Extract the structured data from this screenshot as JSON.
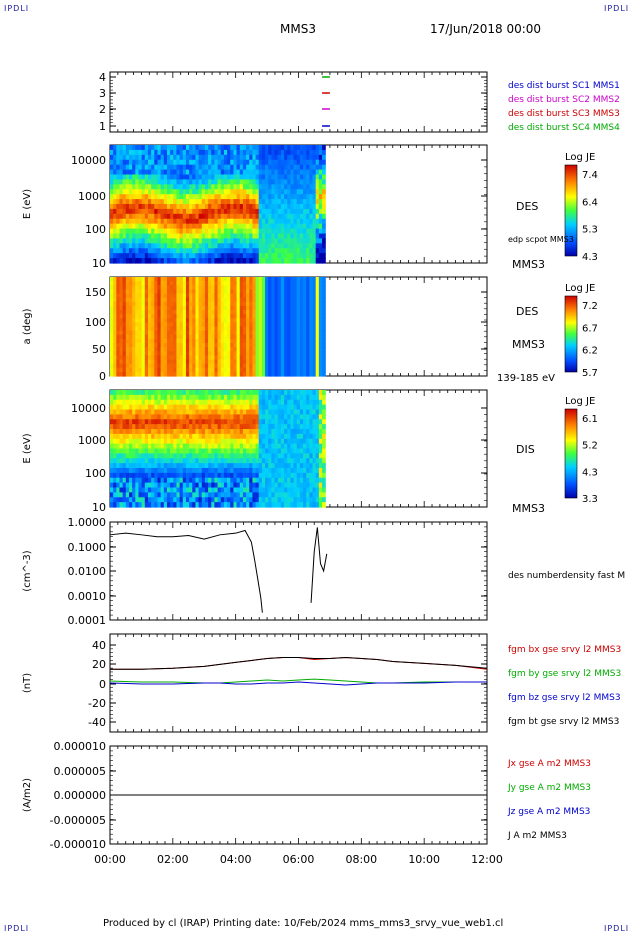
{
  "corner_label": "IPDLI",
  "header": {
    "spacecraft": "MMS3",
    "date": "17/Jun/2018 00:00"
  },
  "footer": {
    "text": "Produced by cl (IRAP)   Printing date: 10/Feb/2024   mms_mms3_srvy_vue_web1.cl"
  },
  "time_axis": {
    "ticks": [
      "00:00",
      "02:00",
      "04:00",
      "06:00",
      "08:00",
      "10:00",
      "12:00"
    ],
    "range_hours": [
      0,
      12
    ]
  },
  "chart_data": [
    {
      "type": "line",
      "panel": "availability",
      "yticks": [
        "4",
        "3",
        "2",
        "1"
      ],
      "legend": [
        {
          "text": "des dist burst SC1 MMS1",
          "color": "#0000cc"
        },
        {
          "text": "des dist burst SC2 MMS2",
          "color": "#cc00cc"
        },
        {
          "text": "des dist burst SC3 MMS3",
          "color": "#cc0000"
        },
        {
          "text": "des dist burst SC4 MMS4",
          "color": "#00aa00"
        }
      ]
    },
    {
      "type": "heatmap",
      "panel": "des-energy",
      "ylabel": "E (eV)",
      "yticks": [
        "10000",
        "1000",
        "100",
        "10"
      ],
      "side_label": "DES",
      "side_note": "edp scpot MMS3",
      "sc_label": "MMS3",
      "colorbar": {
        "title": "Log JE",
        "ticks": [
          "7.4",
          "6.4",
          "5.3",
          "4.3"
        ]
      }
    },
    {
      "type": "heatmap",
      "panel": "des-pitch",
      "ylabel": "a (deg)",
      "yticks": [
        "150",
        "100",
        "50",
        "0"
      ],
      "side_label": "DES",
      "sc_label": "MMS3",
      "energy_range": "139-185 eV",
      "colorbar": {
        "title": "Log JE",
        "ticks": [
          "7.2",
          "6.7",
          "6.2",
          "5.7"
        ]
      }
    },
    {
      "type": "heatmap",
      "panel": "dis-energy",
      "ylabel": "E (eV)",
      "yticks": [
        "10000",
        "1000",
        "100",
        "10"
      ],
      "side_label": "DIS",
      "sc_label": "MMS3",
      "colorbar": {
        "title": "Log JE",
        "ticks": [
          "6.1",
          "5.2",
          "4.3",
          "3.3"
        ]
      }
    },
    {
      "type": "line",
      "panel": "density",
      "ylabel": "(cm^-3)",
      "yticks": [
        "1.0000",
        "0.1000",
        "0.0100",
        "0.0010",
        "0.0001"
      ],
      "legend": [
        {
          "text": "des numberdensity fast M",
          "color": "#000000"
        }
      ],
      "x": [
        0,
        0.5,
        1,
        1.5,
        2,
        2.5,
        3,
        3.5,
        4,
        4.3,
        4.5,
        4.6,
        4.7,
        4.8,
        4.85,
        6.4,
        6.5,
        6.6,
        6.7,
        6.8,
        6.9
      ],
      "y": [
        0.3,
        0.35,
        0.3,
        0.25,
        0.25,
        0.28,
        0.2,
        0.3,
        0.35,
        0.45,
        0.15,
        0.03,
        0.005,
        0.0008,
        0.0002,
        0.0005,
        0.06,
        0.6,
        0.02,
        0.01,
        0.05
      ]
    },
    {
      "type": "line",
      "panel": "magnetic-field",
      "ylabel": "(nT)",
      "yticks": [
        "40",
        "20",
        "0",
        "-20",
        "-40"
      ],
      "ylim": [
        -50,
        50
      ],
      "legend": [
        {
          "text": "fgm bx gse srvy l2 MMS3",
          "color": "#cc0000"
        },
        {
          "text": "fgm by gse srvy l2 MMS3",
          "color": "#00aa00"
        },
        {
          "text": "fgm bz gse srvy l2 MMS3",
          "color": "#0000cc"
        },
        {
          "text": "fgm bt gse srvy l2 MMS3",
          "color": "#000000"
        }
      ],
      "x": [
        0,
        1,
        2,
        3,
        3.5,
        4,
        4.5,
        5,
        5.5,
        6,
        6.5,
        7,
        7.5,
        8,
        8.5,
        9,
        10,
        11,
        12
      ],
      "series": [
        {
          "y": [
            14,
            14,
            15,
            17,
            19,
            21,
            23,
            25,
            26,
            26,
            24,
            25,
            26,
            25,
            24,
            22,
            20,
            18,
            14
          ]
        },
        {
          "y": [
            2,
            1,
            1,
            0,
            0,
            1,
            2,
            3,
            2,
            3,
            4,
            3,
            2,
            1,
            0,
            0,
            1,
            1,
            1
          ]
        },
        {
          "y": [
            0,
            -1,
            -1,
            0,
            0,
            -1,
            -1,
            0,
            0,
            1,
            0,
            -1,
            -2,
            -1,
            0,
            0,
            0,
            1,
            1
          ]
        },
        {
          "y": [
            14,
            14,
            15,
            17,
            19,
            21,
            23,
            25,
            26,
            26,
            25,
            25,
            26,
            25,
            24,
            22,
            20,
            18,
            15
          ]
        }
      ]
    },
    {
      "type": "line",
      "panel": "current-density",
      "ylabel": "(A/m2)",
      "yticks": [
        "0.000010",
        "0.000005",
        "0.000000",
        "-0.000005",
        "-0.000010"
      ],
      "ylim": [
        -1e-05,
        1e-05
      ],
      "legend": [
        {
          "text": "Jx gse A m2 MMS3",
          "color": "#cc0000"
        },
        {
          "text": "Jy gse A m2 MMS3",
          "color": "#00aa00"
        },
        {
          "text": "Jz gse A m2 MMS3",
          "color": "#0000cc"
        },
        {
          "text": "J A m2 MMS3",
          "color": "#000000"
        }
      ]
    }
  ]
}
